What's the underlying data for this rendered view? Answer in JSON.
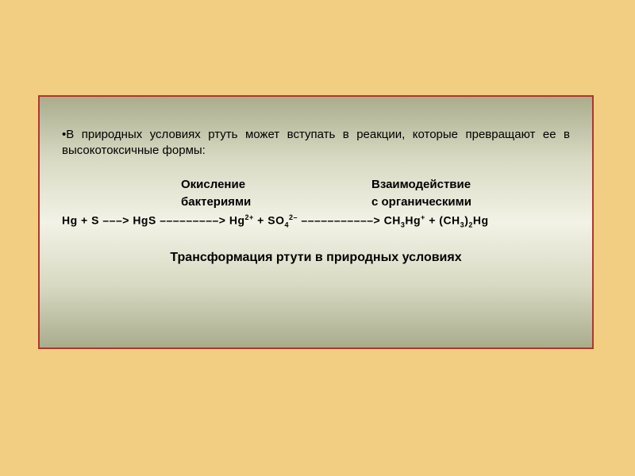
{
  "background_color": "#f2ce83",
  "panel": {
    "border_color": "#b0362a",
    "gradient_top": "#a9ad8c",
    "gradient_mid": "#f2f2e6"
  },
  "intro_bullet": "•",
  "intro_text": "В природных условиях ртуть может вступать в реакции, которые превращают ее в высокотоксичные формы:",
  "label1_line1": "Окисление",
  "label1_line2": "бактериями",
  "label2_line1": "Взаимодействие",
  "label2_line2": "с органическими",
  "reaction": {
    "r1": "Hg",
    "plus1": " + ",
    "r2": "S",
    "arr1": " –––> ",
    "p1": "HgS",
    "arr2": " –––––––––> ",
    "p2a": "Hg",
    "p2a_sup": "2+",
    "plus2": " + ",
    "p2b": "SO",
    "p2b_sub": "4",
    "p2b_sup": "2–",
    "arr3": " –––––––––––> ",
    "p3a": "CH",
    "p3a_sub": "3",
    "p3b": "Hg",
    "p3b_sup": "+",
    "plus3": " + (",
    "p4a": "CH",
    "p4a_sub": "3",
    "p4b": ")",
    "p4b_sub": "2",
    "p4c": "Hg"
  },
  "caption": "Трансформация ртути в природных условиях"
}
